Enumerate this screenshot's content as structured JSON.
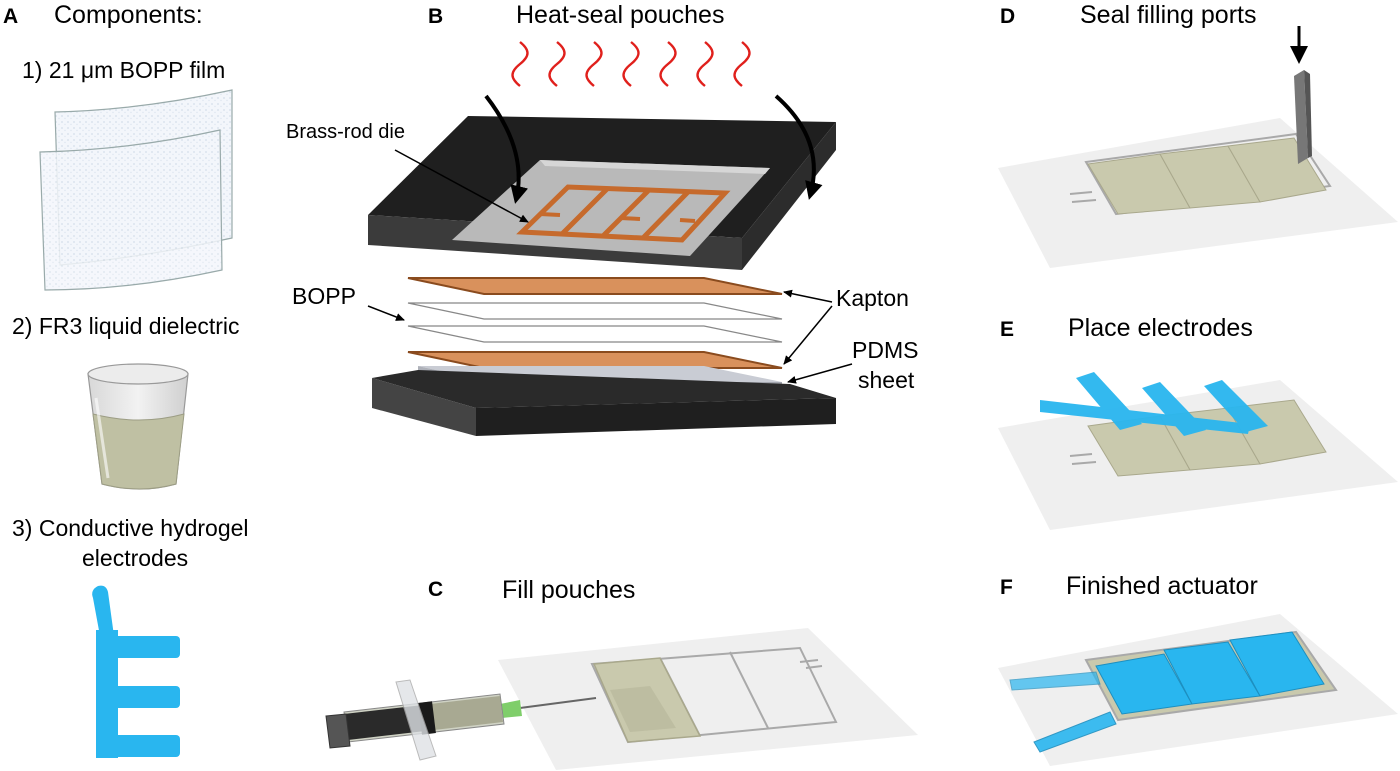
{
  "panels": {
    "a": {
      "letter": "A",
      "title": "Components:",
      "items": [
        "1) 21 μm BOPP film",
        "2) FR3 liquid dielectric",
        "3) Conductive hydrogel",
        "electrodes"
      ]
    },
    "b": {
      "letter": "B",
      "title": "Heat-seal pouches",
      "labels": {
        "die": "Brass-rod die",
        "bopp": "BOPP",
        "kapton": "Kapton",
        "pdms_1": "PDMS",
        "pdms_2": "sheet"
      }
    },
    "c": {
      "letter": "C",
      "title": "Fill pouches"
    },
    "d": {
      "letter": "D",
      "title": "Seal filling ports"
    },
    "e": {
      "letter": "E",
      "title": "Place electrodes"
    },
    "f": {
      "letter": "F",
      "title": "Finished actuator"
    }
  },
  "colors": {
    "kapton": "#d9915c",
    "kapton_edge": "#8a4b1e",
    "press_top": "#1f1f1f",
    "press_side": "#3b3b3b",
    "die_plate": "#b9b9b9",
    "brass": "#c66a2c",
    "heat": "#e0201c",
    "pouch": "#c9c9ad",
    "pouch_dark": "#a9a88c",
    "hydrogel": "#29b6ef",
    "film": "#eeeeee"
  }
}
